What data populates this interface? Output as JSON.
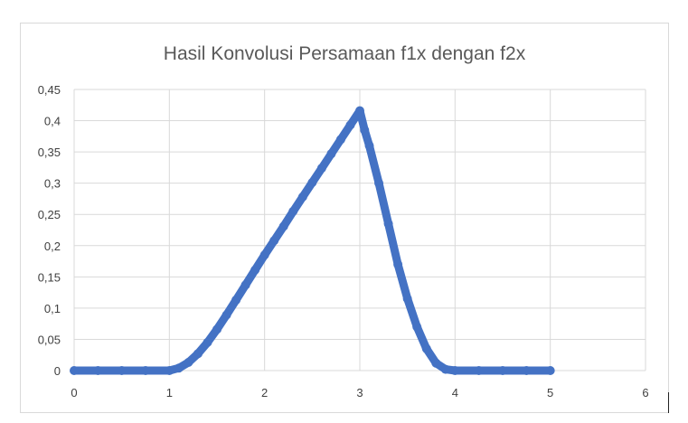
{
  "chart_data": {
    "type": "scatter",
    "title": "Hasil Konvolusi Persamaan f1x dengan f2x",
    "xlabel": "",
    "ylabel": "",
    "xlim": [
      0,
      6
    ],
    "ylim": [
      0,
      0.45
    ],
    "x_ticks": [
      "0",
      "1",
      "2",
      "3",
      "4",
      "5",
      "6"
    ],
    "y_ticks": [
      "0",
      "0,05",
      "0,1",
      "0,15",
      "0,2",
      "0,25",
      "0,3",
      "0,35",
      "0,4",
      "0,45"
    ],
    "grid": true,
    "legend": "none",
    "series_color": "#4472c4",
    "x": [
      0,
      0.25,
      0.5,
      0.75,
      1.0,
      1.1,
      1.2,
      1.3,
      1.4,
      1.5,
      1.6,
      1.7,
      1.8,
      1.9,
      2.0,
      2.1,
      2.2,
      2.3,
      2.4,
      2.5,
      2.6,
      2.7,
      2.8,
      2.9,
      3.0,
      3.05,
      3.1,
      3.2,
      3.3,
      3.4,
      3.5,
      3.6,
      3.7,
      3.8,
      3.9,
      4.0,
      4.25,
      4.5,
      4.75,
      5.0
    ],
    "values": [
      0,
      0,
      0,
      0,
      0,
      0.004,
      0.013,
      0.027,
      0.045,
      0.066,
      0.089,
      0.113,
      0.137,
      0.161,
      0.185,
      0.208,
      0.231,
      0.255,
      0.278,
      0.301,
      0.324,
      0.347,
      0.37,
      0.393,
      0.416,
      0.385,
      0.36,
      0.3,
      0.235,
      0.17,
      0.115,
      0.07,
      0.035,
      0.012,
      0.002,
      0,
      0,
      0,
      0,
      0
    ]
  }
}
